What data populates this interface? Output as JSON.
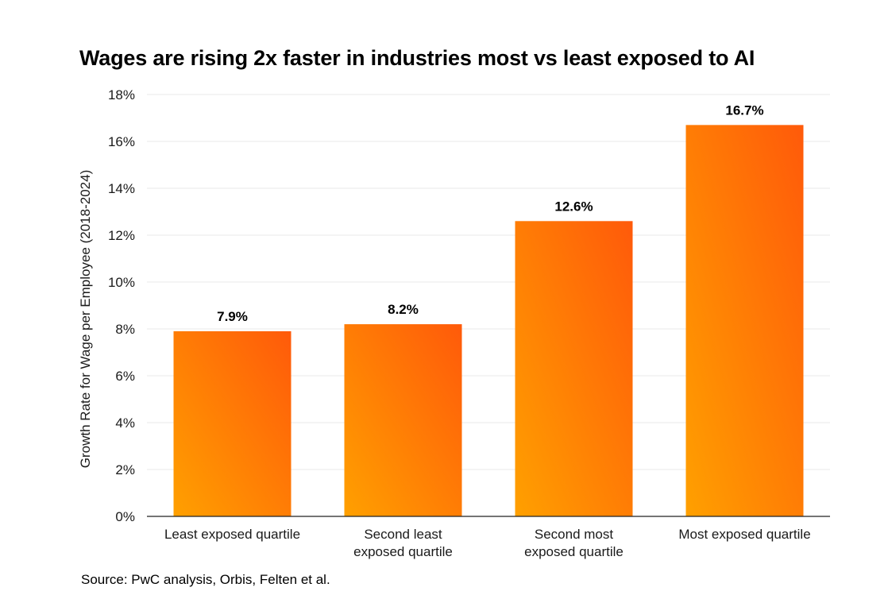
{
  "chart_data": {
    "type": "bar",
    "title": "Wages are rising 2x faster in industries most vs least exposed to AI",
    "xlabel": "",
    "ylabel": "Growth Rate for Wage per Employee (2018-2024)",
    "categories": [
      [
        "Least exposed quartile"
      ],
      [
        "Second least",
        "exposed quartile"
      ],
      [
        "Second most",
        "exposed quartile"
      ],
      [
        "Most exposed quartile"
      ]
    ],
    "values": [
      7.9,
      8.2,
      12.6,
      16.7
    ],
    "value_labels": [
      "7.9%",
      "8.2%",
      "12.6%",
      "16.7%"
    ],
    "ylim": [
      0,
      18
    ],
    "yticks": [
      0,
      2,
      4,
      6,
      8,
      10,
      12,
      14,
      16,
      18
    ],
    "ytick_labels": [
      "0%",
      "2%",
      "4%",
      "6%",
      "8%",
      "10%",
      "12%",
      "14%",
      "16%",
      "18%"
    ],
    "grid": true,
    "legend": "none",
    "colors": {
      "bar_top": "#ff5a0a",
      "bar_bottom": "#ffa000",
      "grid": "#e9e9e9",
      "axis": "#222222"
    }
  },
  "source": "Source: PwC analysis, Orbis, Felten et al."
}
